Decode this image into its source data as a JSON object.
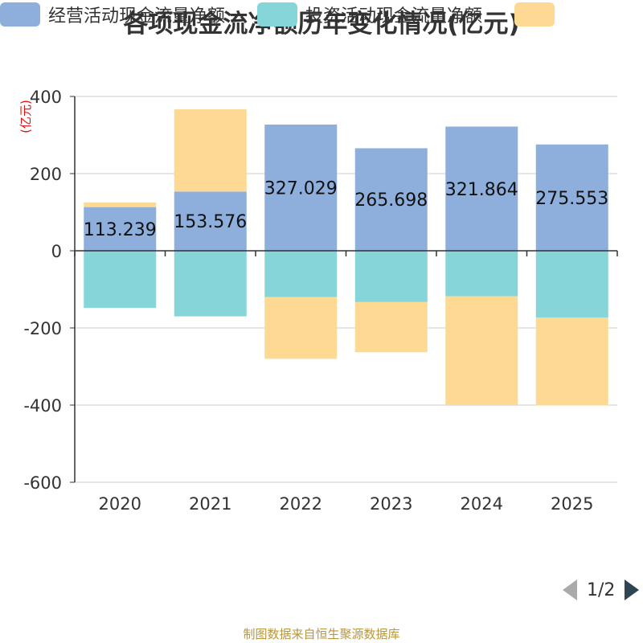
{
  "chart_data": {
    "type": "bar",
    "stacked": true,
    "title": "各项现金流净额历年变化情况(亿元)",
    "ylabel": "(亿元)",
    "xlabel": "",
    "categories": [
      "2020",
      "2021",
      "2022",
      "2023",
      "2024",
      "2025"
    ],
    "ylim": [
      -600,
      400
    ],
    "yticks": [
      400,
      200,
      0,
      -200,
      -400,
      -600
    ],
    "grid": true,
    "series": [
      {
        "name": "经营活动现金流量净额",
        "color": "#8eaedc",
        "values": [
          113.239,
          153.576,
          327.029,
          265.698,
          321.864,
          275.553
        ],
        "show_labels": true
      },
      {
        "name": "投资活动现金流量净额",
        "color": "#86d5d8",
        "values": [
          -148,
          -170,
          -120,
          -133,
          -118,
          -173
        ],
        "show_labels": false
      },
      {
        "name": "",
        "color": "#fed994",
        "values": [
          12,
          213,
          -160,
          -130,
          -282,
          -228
        ],
        "show_labels": false
      }
    ],
    "legend_position": "bottom"
  },
  "legend": {
    "items": [
      {
        "label": "经营活动现金流量净额",
        "color": "#8eaedc"
      },
      {
        "label": "投资活动现金流量净额",
        "color": "#86d5d8"
      },
      {
        "label": "",
        "color": "#fed994"
      }
    ],
    "page": "1/2"
  },
  "footer": "制图数据来自恒生聚源数据库"
}
